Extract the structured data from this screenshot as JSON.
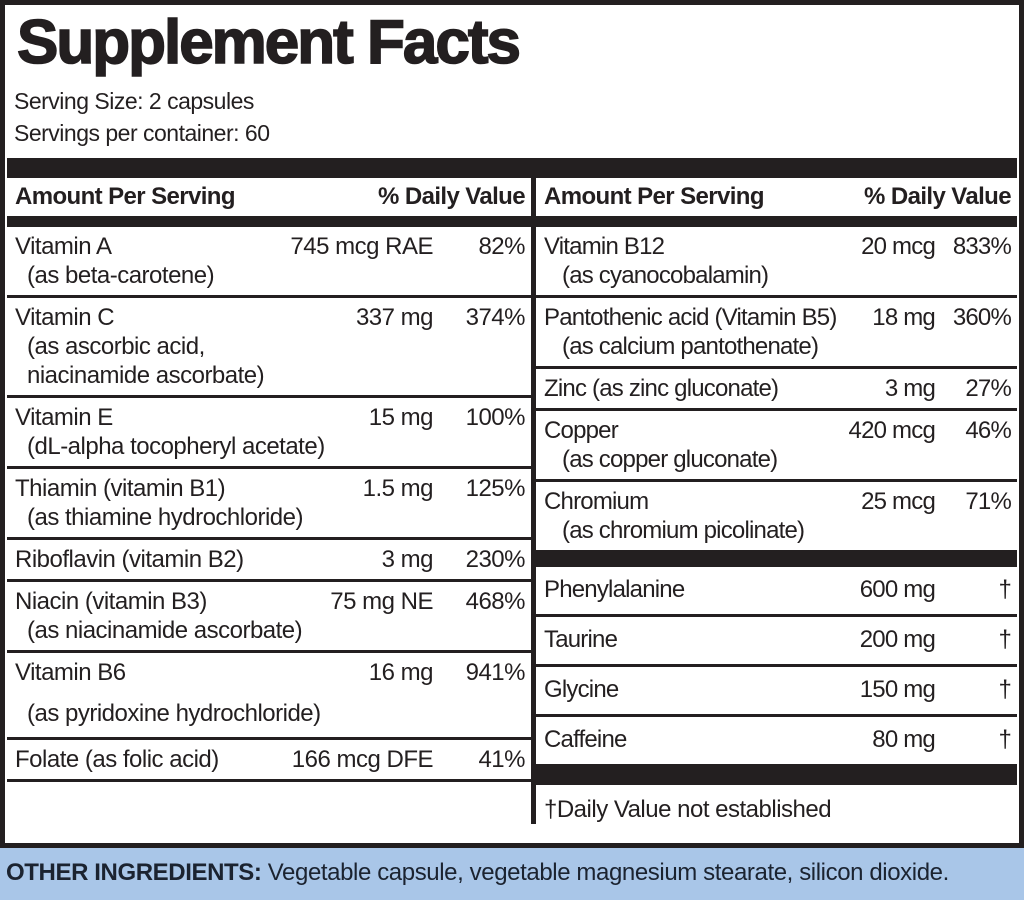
{
  "title": "Supplement Facts",
  "serving": {
    "size": "Serving Size: 2 capsules",
    "per_container": "Servings per container: 60"
  },
  "table": {
    "header": {
      "amount": "Amount Per Serving",
      "dv": "% Daily Value"
    },
    "left_rows": [
      {
        "name": "Vitamin A",
        "sub": [
          "(as beta-carotene)"
        ],
        "amount": "745 mcg RAE",
        "dv": "82%"
      },
      {
        "name": "Vitamin C",
        "sub": [
          "(as ascorbic acid,",
          "niacinamide ascorbate)"
        ],
        "amount": "337 mg",
        "dv": "374%"
      },
      {
        "name": "Vitamin E",
        "sub": [
          "(dL-alpha tocopheryl acetate)"
        ],
        "amount": "15 mg",
        "dv": "100%"
      },
      {
        "name": "Thiamin (vitamin B1)",
        "sub": [
          "(as thiamine hydrochloride)"
        ],
        "amount": "1.5 mg",
        "dv": "125%"
      },
      {
        "name": "Riboflavin (vitamin B2)",
        "sub": [],
        "amount": "3 mg",
        "dv": "230%"
      },
      {
        "name": "Niacin (vitamin B3)",
        "sub": [
          "(as niacinamide ascorbate)"
        ],
        "amount": "75 mg NE",
        "dv": "468%"
      },
      {
        "name": "Vitamin B6",
        "sub": [
          "(as pyridoxine hydrochloride)"
        ],
        "amount": "16 mg",
        "dv": "941%"
      },
      {
        "name": "Folate (as folic acid)",
        "sub": [],
        "amount": "166 mcg DFE",
        "dv": "41%"
      }
    ],
    "right_rows": [
      {
        "name": "Vitamin B12",
        "sub": [
          "(as cyanocobalamin)"
        ],
        "amount": "20 mcg",
        "dv": "833%"
      },
      {
        "name": "Pantothenic acid (Vitamin B5)",
        "sub": [
          "(as calcium pantothenate)"
        ],
        "amount": "18 mg",
        "dv": "360%"
      },
      {
        "name": "Zinc (as zinc gluconate)",
        "sub": [],
        "amount": "3 mg",
        "dv": "27%"
      },
      {
        "name": "Copper",
        "sub": [
          "(as copper gluconate)"
        ],
        "amount": "420 mcg",
        "dv": "46%"
      },
      {
        "name": "Chromium",
        "sub": [
          "(as chromium picolinate)"
        ],
        "amount": "25 mcg",
        "dv": "71%"
      }
    ],
    "amino_rows": [
      {
        "name": "Phenylalanine",
        "amount": "600 mg",
        "dv": "†"
      },
      {
        "name": "Taurine",
        "amount": "200 mg",
        "dv": "†"
      },
      {
        "name": "Glycine",
        "amount": "150 mg",
        "dv": "†"
      },
      {
        "name": "Caffeine",
        "amount": "80 mg",
        "dv": "†"
      }
    ],
    "footnote": "†Daily Value not established"
  },
  "other_ingredients": {
    "label": "OTHER INGREDIENTS:",
    "text": "Vegetable capsule, vegetable magnesium stearate, silicon dioxide."
  },
  "colors": {
    "ink": "#231f20",
    "panel_bg": "#ffffff",
    "strip_blue": "#a9c6e8"
  }
}
